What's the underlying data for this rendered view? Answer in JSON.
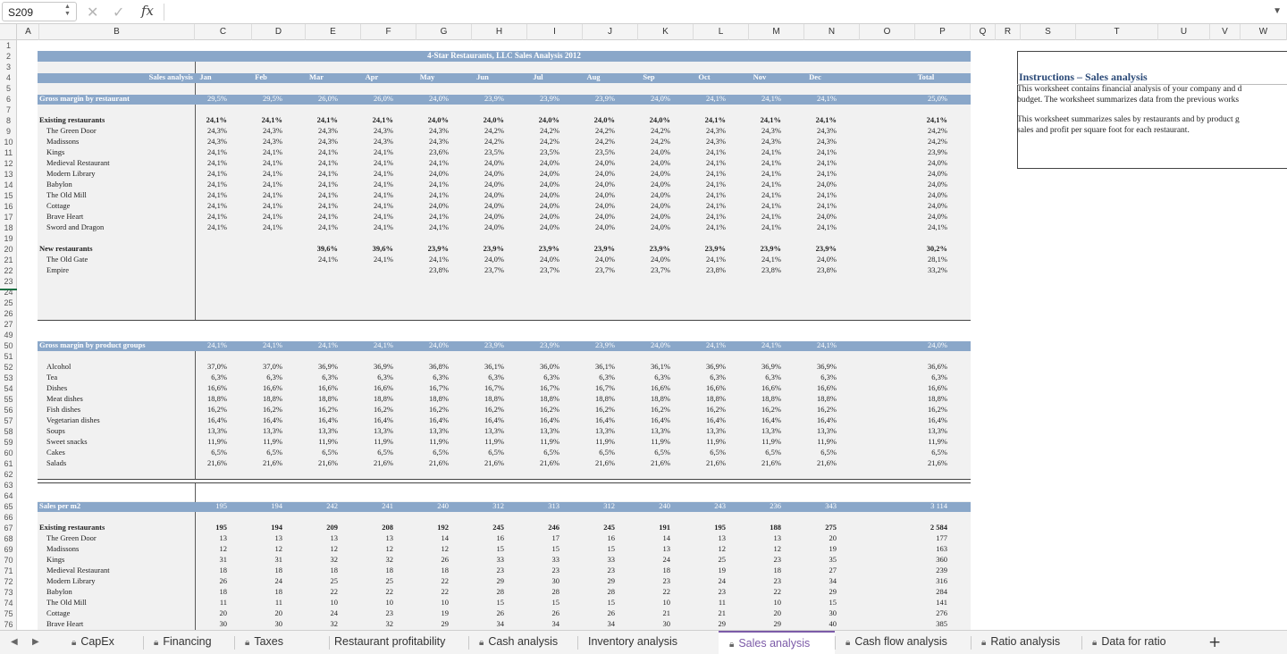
{
  "formula_bar": {
    "cell_ref": "S209",
    "fx_label": "fx",
    "cancel_icon": "✕",
    "confirm_icon": "✓",
    "formula": ""
  },
  "columns": [
    "A",
    "B",
    "C",
    "D",
    "E",
    "F",
    "G",
    "H",
    "I",
    "J",
    "K",
    "L",
    "M",
    "N",
    "O",
    "P",
    "Q",
    "R",
    "S",
    "T",
    "U",
    "V",
    "W"
  ],
  "rows": [
    "1",
    "2",
    "3",
    "4",
    "5",
    "6",
    "7",
    "8",
    "9",
    "10",
    "11",
    "12",
    "13",
    "14",
    "15",
    "16",
    "17",
    "18",
    "19",
    "20",
    "21",
    "22",
    "23",
    "24",
    "25",
    "26",
    "27",
    "49",
    "50",
    "51",
    "52",
    "53",
    "54",
    "55",
    "56",
    "57",
    "58",
    "59",
    "60",
    "61",
    "62",
    "63",
    "64",
    "65",
    "66",
    "67",
    "68",
    "69",
    "70",
    "71",
    "72",
    "73",
    "74",
    "75",
    "76"
  ],
  "sheet": {
    "title": "4-Star Restaurants, LLC Sales Analysis 2012",
    "header_label": "Sales analysis",
    "months": [
      "Jan",
      "Feb",
      "Mar",
      "Apr",
      "May",
      "Jun",
      "Jul",
      "Aug",
      "Sep",
      "Oct",
      "Nov",
      "Dec",
      "Total"
    ],
    "sections": [
      {
        "label": "Gross margin by restaurant",
        "band": [
          "29,5%",
          "29,5%",
          "26,0%",
          "26,0%",
          "24,0%",
          "23,9%",
          "23,9%",
          "23,9%",
          "24,0%",
          "24,1%",
          "24,1%",
          "24,1%",
          "25,0%"
        ]
      },
      {
        "label": "Gross margin by product groups",
        "band": [
          "24,1%",
          "24,1%",
          "24,1%",
          "24,1%",
          "24,0%",
          "23,9%",
          "23,9%",
          "23,9%",
          "24,0%",
          "24,1%",
          "24,1%",
          "24,1%",
          "24,0%"
        ]
      },
      {
        "label": "Sales per m2",
        "band": [
          "195",
          "194",
          "242",
          "241",
          "240",
          "312",
          "313",
          "312",
          "240",
          "243",
          "236",
          "343",
          "3 114"
        ]
      }
    ],
    "groups": [
      {
        "label": "Existing restaurants",
        "values": [
          "24,1%",
          "24,1%",
          "24,1%",
          "24,1%",
          "24,0%",
          "24,0%",
          "24,0%",
          "24,0%",
          "24,0%",
          "24,1%",
          "24,1%",
          "24,1%",
          "24,1%"
        ]
      },
      {
        "label": "New restaurants",
        "values": [
          "",
          "",
          "39,6%",
          "39,6%",
          "23,9%",
          "23,9%",
          "23,9%",
          "23,9%",
          "23,9%",
          "23,9%",
          "23,9%",
          "23,9%",
          "30,2%"
        ]
      },
      {
        "label": "Existing restaurants",
        "values": [
          "195",
          "194",
          "209",
          "208",
          "192",
          "245",
          "246",
          "245",
          "191",
          "195",
          "188",
          "275",
          "2 584"
        ]
      }
    ],
    "existing_restaurants": [
      {
        "name": "The Green Door",
        "values": [
          "24,3%",
          "24,3%",
          "24,3%",
          "24,3%",
          "24,3%",
          "24,2%",
          "24,2%",
          "24,2%",
          "24,2%",
          "24,3%",
          "24,3%",
          "24,3%",
          "24,2%"
        ]
      },
      {
        "name": "Madissons",
        "values": [
          "24,3%",
          "24,3%",
          "24,3%",
          "24,3%",
          "24,3%",
          "24,2%",
          "24,2%",
          "24,2%",
          "24,2%",
          "24,3%",
          "24,3%",
          "24,3%",
          "24,2%"
        ]
      },
      {
        "name": "Kings",
        "values": [
          "24,1%",
          "24,1%",
          "24,1%",
          "24,1%",
          "23,6%",
          "23,5%",
          "23,5%",
          "23,5%",
          "24,0%",
          "24,1%",
          "24,1%",
          "24,1%",
          "23,9%"
        ]
      },
      {
        "name": "Medieval Restaurant",
        "values": [
          "24,1%",
          "24,1%",
          "24,1%",
          "24,1%",
          "24,1%",
          "24,0%",
          "24,0%",
          "24,0%",
          "24,0%",
          "24,1%",
          "24,1%",
          "24,1%",
          "24,0%"
        ]
      },
      {
        "name": "Modern Library",
        "values": [
          "24,1%",
          "24,1%",
          "24,1%",
          "24,1%",
          "24,0%",
          "24,0%",
          "24,0%",
          "24,0%",
          "24,0%",
          "24,1%",
          "24,1%",
          "24,1%",
          "24,0%"
        ]
      },
      {
        "name": "Babylon",
        "values": [
          "24,1%",
          "24,1%",
          "24,1%",
          "24,1%",
          "24,1%",
          "24,0%",
          "24,0%",
          "24,0%",
          "24,0%",
          "24,1%",
          "24,1%",
          "24,0%",
          "24,0%"
        ]
      },
      {
        "name": "The Old Mill",
        "values": [
          "24,1%",
          "24,1%",
          "24,1%",
          "24,1%",
          "24,1%",
          "24,0%",
          "24,0%",
          "24,0%",
          "24,0%",
          "24,1%",
          "24,1%",
          "24,1%",
          "24,0%"
        ]
      },
      {
        "name": "Cottage",
        "values": [
          "24,1%",
          "24,1%",
          "24,1%",
          "24,1%",
          "24,0%",
          "24,0%",
          "24,0%",
          "24,0%",
          "24,0%",
          "24,1%",
          "24,1%",
          "24,1%",
          "24,0%"
        ]
      },
      {
        "name": "Brave Heart",
        "values": [
          "24,1%",
          "24,1%",
          "24,1%",
          "24,1%",
          "24,1%",
          "24,0%",
          "24,0%",
          "24,0%",
          "24,0%",
          "24,1%",
          "24,1%",
          "24,0%",
          "24,0%"
        ]
      },
      {
        "name": "Sword and Dragon",
        "values": [
          "24,1%",
          "24,1%",
          "24,1%",
          "24,1%",
          "24,1%",
          "24,0%",
          "24,0%",
          "24,0%",
          "24,0%",
          "24,1%",
          "24,1%",
          "24,1%",
          "24,1%"
        ]
      }
    ],
    "new_restaurants": [
      {
        "name": "The Old Gate",
        "values": [
          "",
          "",
          "24,1%",
          "24,1%",
          "24,1%",
          "24,0%",
          "24,0%",
          "24,0%",
          "24,0%",
          "24,1%",
          "24,1%",
          "24,0%",
          "28,1%"
        ]
      },
      {
        "name": "Empire",
        "values": [
          "",
          "",
          "",
          "",
          "23,8%",
          "23,7%",
          "23,7%",
          "23,7%",
          "23,7%",
          "23,8%",
          "23,8%",
          "23,8%",
          "33,2%"
        ]
      }
    ],
    "product_groups": [
      {
        "name": "Alcohol",
        "values": [
          "37,0%",
          "37,0%",
          "36,9%",
          "36,9%",
          "36,8%",
          "36,1%",
          "36,0%",
          "36,1%",
          "36,1%",
          "36,9%",
          "36,9%",
          "36,9%",
          "36,6%"
        ]
      },
      {
        "name": "Tea",
        "values": [
          "6,3%",
          "6,3%",
          "6,3%",
          "6,3%",
          "6,3%",
          "6,3%",
          "6,3%",
          "6,3%",
          "6,3%",
          "6,3%",
          "6,3%",
          "6,3%",
          "6,3%"
        ]
      },
      {
        "name": "Dishes",
        "values": [
          "16,6%",
          "16,6%",
          "16,6%",
          "16,6%",
          "16,7%",
          "16,7%",
          "16,7%",
          "16,7%",
          "16,6%",
          "16,6%",
          "16,6%",
          "16,6%",
          "16,6%"
        ]
      },
      {
        "name": "Meat dishes",
        "values": [
          "18,8%",
          "18,8%",
          "18,8%",
          "18,8%",
          "18,8%",
          "18,8%",
          "18,8%",
          "18,8%",
          "18,8%",
          "18,8%",
          "18,8%",
          "18,8%",
          "18,8%"
        ]
      },
      {
        "name": "Fish dishes",
        "values": [
          "16,2%",
          "16,2%",
          "16,2%",
          "16,2%",
          "16,2%",
          "16,2%",
          "16,2%",
          "16,2%",
          "16,2%",
          "16,2%",
          "16,2%",
          "16,2%",
          "16,2%"
        ]
      },
      {
        "name": "Vegetarian dishes",
        "values": [
          "16,4%",
          "16,4%",
          "16,4%",
          "16,4%",
          "16,4%",
          "16,4%",
          "16,4%",
          "16,4%",
          "16,4%",
          "16,4%",
          "16,4%",
          "16,4%",
          "16,4%"
        ]
      },
      {
        "name": "Soups",
        "values": [
          "13,3%",
          "13,3%",
          "13,3%",
          "13,3%",
          "13,3%",
          "13,3%",
          "13,3%",
          "13,3%",
          "13,3%",
          "13,3%",
          "13,3%",
          "13,3%",
          "13,3%"
        ]
      },
      {
        "name": "Sweet snacks",
        "values": [
          "11,9%",
          "11,9%",
          "11,9%",
          "11,9%",
          "11,9%",
          "11,9%",
          "11,9%",
          "11,9%",
          "11,9%",
          "11,9%",
          "11,9%",
          "11,9%",
          "11,9%"
        ]
      },
      {
        "name": "Cakes",
        "values": [
          "6,5%",
          "6,5%",
          "6,5%",
          "6,5%",
          "6,5%",
          "6,5%",
          "6,5%",
          "6,5%",
          "6,5%",
          "6,5%",
          "6,5%",
          "6,5%",
          "6,5%"
        ]
      },
      {
        "name": "Salads",
        "values": [
          "21,6%",
          "21,6%",
          "21,6%",
          "21,6%",
          "21,6%",
          "21,6%",
          "21,6%",
          "21,6%",
          "21,6%",
          "21,6%",
          "21,6%",
          "21,6%",
          "21,6%"
        ]
      }
    ],
    "sales_per_m2_restaurants": [
      {
        "name": "The Green Door",
        "values": [
          "13",
          "13",
          "13",
          "13",
          "14",
          "16",
          "17",
          "16",
          "14",
          "13",
          "13",
          "20",
          "177"
        ]
      },
      {
        "name": "Madissons",
        "values": [
          "12",
          "12",
          "12",
          "12",
          "12",
          "15",
          "15",
          "15",
          "13",
          "12",
          "12",
          "19",
          "163"
        ]
      },
      {
        "name": "Kings",
        "values": [
          "31",
          "31",
          "32",
          "32",
          "26",
          "33",
          "33",
          "33",
          "24",
          "25",
          "23",
          "35",
          "360"
        ]
      },
      {
        "name": "Medieval Restaurant",
        "values": [
          "18",
          "18",
          "18",
          "18",
          "18",
          "23",
          "23",
          "23",
          "18",
          "19",
          "18",
          "27",
          "239"
        ]
      },
      {
        "name": "Modern Library",
        "values": [
          "26",
          "24",
          "25",
          "25",
          "22",
          "29",
          "30",
          "29",
          "23",
          "24",
          "23",
          "34",
          "316"
        ]
      },
      {
        "name": "Babylon",
        "values": [
          "18",
          "18",
          "22",
          "22",
          "22",
          "28",
          "28",
          "28",
          "22",
          "23",
          "22",
          "29",
          "284"
        ]
      },
      {
        "name": "The Old Mill",
        "values": [
          "11",
          "11",
          "10",
          "10",
          "10",
          "15",
          "15",
          "15",
          "10",
          "11",
          "10",
          "15",
          "141"
        ]
      },
      {
        "name": "Cottage",
        "values": [
          "20",
          "20",
          "24",
          "23",
          "19",
          "26",
          "26",
          "26",
          "21",
          "21",
          "20",
          "30",
          "276"
        ]
      },
      {
        "name": "Brave Heart",
        "values": [
          "30",
          "30",
          "32",
          "32",
          "29",
          "34",
          "34",
          "34",
          "30",
          "29",
          "29",
          "40",
          "385"
        ]
      }
    ]
  },
  "instructions": {
    "title": "Instructions – Sales analysis",
    "para1_line1": "This worksheet contains financial analysis of your company and d",
    "para1_line2": "budget. The worksheet summarizes data from the previous works",
    "para2_line1": "This worksheet summarizes sales by restaurants and by product g",
    "para2_line2": "sales and profit per square foot for each restaurant."
  },
  "tabs": [
    {
      "label": "CapEx",
      "locked": true,
      "active": false
    },
    {
      "label": "Financing",
      "locked": true,
      "active": false
    },
    {
      "label": "Taxes",
      "locked": true,
      "active": false
    },
    {
      "label": "Restaurant profitability",
      "locked": false,
      "active": false
    },
    {
      "label": "Cash analysis",
      "locked": true,
      "active": false
    },
    {
      "label": "Inventory analysis",
      "locked": false,
      "active": false
    },
    {
      "label": "Sales analysis",
      "locked": true,
      "active": true
    },
    {
      "label": "Cash flow analysis",
      "locked": true,
      "active": false
    },
    {
      "label": "Ratio analysis",
      "locked": true,
      "active": false
    },
    {
      "label": "Data for ratio",
      "locked": true,
      "active": false
    }
  ],
  "add_sheet_label": "+",
  "colors": {
    "band": "#8aa7c9",
    "panel": "#f1f1f1",
    "accent": "#7c5ba8",
    "title": "#2b4a78"
  }
}
